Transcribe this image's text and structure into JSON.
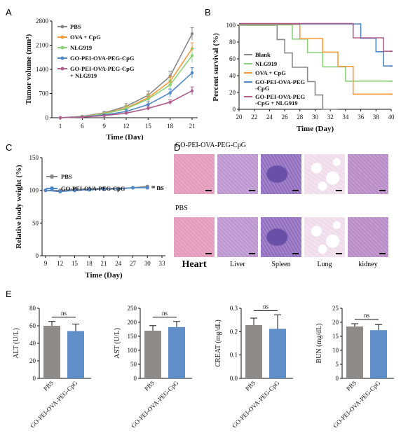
{
  "panels": {
    "A": "A",
    "B": "B",
    "C": "C",
    "D": "D",
    "E": "E"
  },
  "chart_data": [
    {
      "id": "A",
      "type": "line",
      "xlabel": "Time (Day)",
      "ylabel": "Tumor volume (mm³)",
      "x": [
        1,
        6,
        9,
        12,
        15,
        18,
        21
      ],
      "xticks": [
        "1",
        "6",
        "9",
        "12",
        "15",
        "18",
        "21"
      ],
      "ylim": [
        0,
        2800
      ],
      "yticks": [
        0,
        700,
        1400,
        2100,
        2800
      ],
      "legend_placement": "top-left",
      "series": [
        {
          "name": "PBS",
          "color": "#888888",
          "values": [
            0,
            40,
            140,
            330,
            650,
            1200,
            2430
          ],
          "errors": [
            0,
            15,
            40,
            80,
            120,
            150,
            180
          ]
        },
        {
          "name": "OVA + CpG",
          "color": "#f39c3c",
          "values": [
            0,
            35,
            120,
            280,
            580,
            1050,
            2000
          ],
          "errors": [
            0,
            15,
            35,
            70,
            110,
            140,
            170
          ]
        },
        {
          "name": "NLG919",
          "color": "#8cd07a",
          "values": [
            0,
            35,
            110,
            260,
            540,
            950,
            1800
          ],
          "errors": [
            0,
            15,
            35,
            70,
            100,
            140,
            200
          ]
        },
        {
          "name": "GO-PEI-OVA-PEG-CpG",
          "color": "#4f86c6",
          "values": [
            0,
            25,
            80,
            180,
            380,
            720,
            1300
          ],
          "errors": [
            0,
            10,
            25,
            50,
            80,
            110,
            150
          ]
        },
        {
          "name": "GO-PEI-OVA-PEG-CpG + NLG919",
          "color": "#b05f8c",
          "values": [
            0,
            20,
            60,
            130,
            270,
            450,
            780
          ],
          "errors": [
            0,
            10,
            20,
            35,
            50,
            70,
            110
          ]
        }
      ]
    },
    {
      "id": "B",
      "type": "line",
      "xlabel": "Time (Day)",
      "ylabel": "Percent survival (%)",
      "xlim": [
        20,
        40
      ],
      "xticks": [
        "20",
        "22",
        "24",
        "26",
        "28",
        "30",
        "32",
        "34",
        "36",
        "38",
        "40"
      ],
      "ylim": [
        0,
        100
      ],
      "yticks": [
        0,
        20,
        40,
        60,
        80,
        100
      ],
      "legend_placement": "bottom-left",
      "series": [
        {
          "name": "Blank",
          "color": "#888888",
          "steps": [
            [
              20,
              100
            ],
            [
              25,
              100
            ],
            [
              25,
              83
            ],
            [
              26,
              83
            ],
            [
              26,
              67
            ],
            [
              27,
              67
            ],
            [
              27,
              50
            ],
            [
              29,
              50
            ],
            [
              29,
              33
            ],
            [
              30,
              33
            ],
            [
              30,
              17
            ],
            [
              31,
              17
            ],
            [
              31,
              0
            ],
            [
              33,
              0
            ]
          ]
        },
        {
          "name": "NLG919",
          "color": "#8cd07a",
          "steps": [
            [
              20,
              100
            ],
            [
              27,
              100
            ],
            [
              27,
              83
            ],
            [
              29,
              83
            ],
            [
              29,
              67
            ],
            [
              31,
              67
            ],
            [
              31,
              50
            ],
            [
              34,
              50
            ],
            [
              34,
              33
            ],
            [
              40,
              33
            ]
          ]
        },
        {
          "name": "OVA + CpG",
          "color": "#f39c3c",
          "steps": [
            [
              20,
              100
            ],
            [
              28,
              100
            ],
            [
              28,
              83
            ],
            [
              31,
              83
            ],
            [
              31,
              67
            ],
            [
              33,
              67
            ],
            [
              33,
              50
            ],
            [
              35,
              50
            ],
            [
              35,
              17
            ],
            [
              40,
              17
            ]
          ]
        },
        {
          "name": "GO-PEI-OVA-PEG-CpG",
          "color": "#4f86c6",
          "steps": [
            [
              20,
              100
            ],
            [
              36,
              100
            ],
            [
              36,
              83
            ],
            [
              38,
              83
            ],
            [
              38,
              67
            ],
            [
              39,
              67
            ],
            [
              39,
              50
            ],
            [
              40,
              50
            ]
          ]
        },
        {
          "name": "GO-PEI-OVA-PEG-CpG + NLG919",
          "color": "#b05f8c",
          "steps": [
            [
              20,
              100
            ],
            [
              35,
              100
            ],
            [
              35,
              83
            ],
            [
              39,
              83
            ],
            [
              39,
              67
            ],
            [
              40,
              67
            ]
          ]
        }
      ]
    },
    {
      "id": "C",
      "type": "line",
      "xlabel": "Time (Day)",
      "ylabel": "Relative body weight (%)",
      "x": [
        9,
        12,
        15,
        18,
        21,
        24,
        27,
        30
      ],
      "xticks": [
        "9",
        "12",
        "15",
        "18",
        "21",
        "24",
        "27",
        "30",
        "33"
      ],
      "xlim": [
        9,
        33
      ],
      "ylim": [
        0,
        150
      ],
      "yticks": [
        0,
        50,
        100,
        150
      ],
      "annotation": "ns",
      "legend_placement": "top-left",
      "series": [
        {
          "name": "PBS",
          "color": "#888888",
          "values": [
            100,
            100,
            101,
            102,
            103,
            103,
            104,
            106
          ],
          "errors": [
            1,
            2,
            2,
            2,
            2,
            2,
            2,
            2
          ]
        },
        {
          "name": "GO-PEI-OVA-PEG-CpG",
          "color": "#4f86c6",
          "values": [
            100,
            98,
            100,
            101,
            102,
            102,
            104,
            104
          ],
          "errors": [
            1,
            2,
            2,
            2,
            2,
            2,
            2,
            2
          ]
        }
      ]
    },
    {
      "id": "E1",
      "type": "bar",
      "ylabel": "ALT (U/L)",
      "ylim": [
        0,
        80
      ],
      "yticks": [
        0,
        20,
        40,
        60,
        80
      ],
      "categories": [
        "PBS",
        "GO-PEI-OVA-PEG-CpG"
      ],
      "values": [
        60,
        54
      ],
      "errors": [
        5,
        8
      ],
      "colors": [
        "#8f8b88",
        "#5f8ec9"
      ],
      "annotation": "ns"
    },
    {
      "id": "E2",
      "type": "bar",
      "ylabel": "AST (U/L)",
      "ylim": [
        0,
        250
      ],
      "yticks": [
        0,
        50,
        100,
        150,
        200,
        250
      ],
      "categories": [
        "PBS",
        "GO-PEI-OVA-PEG-CpG"
      ],
      "values": [
        170,
        183
      ],
      "errors": [
        18,
        20
      ],
      "colors": [
        "#8f8b88",
        "#5f8ec9"
      ],
      "annotation": "ns"
    },
    {
      "id": "E3",
      "type": "bar",
      "ylabel": "CREAT (mg/dL)",
      "ylim": [
        0,
        0.3
      ],
      "yticks": [
        0.0,
        0.1,
        0.2,
        0.3
      ],
      "categories": [
        "PBS",
        "GO-PEI-OVA-PEG-CpG"
      ],
      "values": [
        0.228,
        0.212
      ],
      "errors": [
        0.03,
        0.06
      ],
      "colors": [
        "#8f8b88",
        "#5f8ec9"
      ],
      "annotation": "ns"
    },
    {
      "id": "E4",
      "type": "bar",
      "ylabel": "BUN (mg/dL)",
      "ylim": [
        0,
        25
      ],
      "yticks": [
        0,
        5,
        10,
        15,
        20,
        25
      ],
      "categories": [
        "PBS",
        "GO-PEI-OVA-PEG-CpG"
      ],
      "values": [
        18.5,
        17.2
      ],
      "errors": [
        1,
        2
      ],
      "colors": [
        "#8f8b88",
        "#5f8ec9"
      ],
      "annotation": "ns"
    }
  ],
  "histology": {
    "row_labels": [
      "GO-PEI-OVA-PEG-CpG",
      "PBS"
    ],
    "organs": [
      "Heart",
      "Liver",
      "Spleen",
      "Lung",
      "kidney"
    ]
  }
}
